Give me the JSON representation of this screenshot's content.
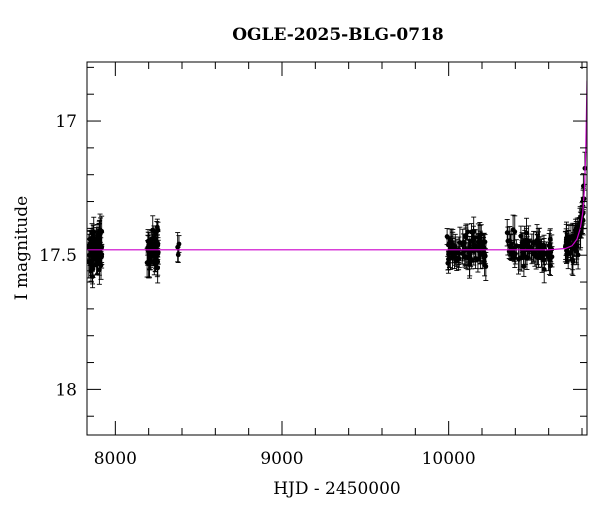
{
  "chart_data": {
    "type": "scatter",
    "title": "OGLE-2025-BLG-0718",
    "xlabel": "HJD - 2450000",
    "ylabel": "I magnitude",
    "xlim": [
      7830,
      10830
    ],
    "ylim": [
      18.17,
      16.78
    ],
    "y_inverted": true,
    "x_ticks": [
      8000,
      9000,
      10000
    ],
    "y_ticks": [
      17,
      17.5,
      18
    ],
    "grid": false,
    "legend": "none",
    "colors": {
      "points": "#000000",
      "model": "#cc00cc"
    },
    "baseline_mag": 17.48,
    "observation_seasons": [
      {
        "start": 7840,
        "end": 7920,
        "mag_center": 17.48,
        "scatter": 0.04,
        "n": 70
      },
      {
        "start": 8190,
        "end": 8260,
        "mag_center": 17.49,
        "scatter": 0.04,
        "n": 55
      },
      {
        "start": 8360,
        "end": 8390,
        "mag_center": 17.47,
        "scatter": 0.02,
        "n": 3
      },
      {
        "start": 9990,
        "end": 10230,
        "mag_center": 17.48,
        "scatter": 0.03,
        "n": 90
      },
      {
        "start": 10350,
        "end": 10620,
        "mag_center": 17.48,
        "scatter": 0.03,
        "n": 80
      },
      {
        "start": 10700,
        "end": 10820,
        "mag_center": 17.48,
        "scatter": 0.03,
        "n": 60
      }
    ],
    "model": {
      "name": "",
      "points": [
        [
          7830,
          17.48
        ],
        [
          10000,
          17.48
        ],
        [
          10600,
          17.48
        ],
        [
          10700,
          17.475
        ],
        [
          10740,
          17.465
        ],
        [
          10770,
          17.44
        ],
        [
          10790,
          17.4
        ],
        [
          10805,
          17.34
        ],
        [
          10815,
          17.25
        ],
        [
          10822,
          17.12
        ],
        [
          10826,
          17.0
        ],
        [
          10830,
          16.85
        ]
      ]
    }
  }
}
